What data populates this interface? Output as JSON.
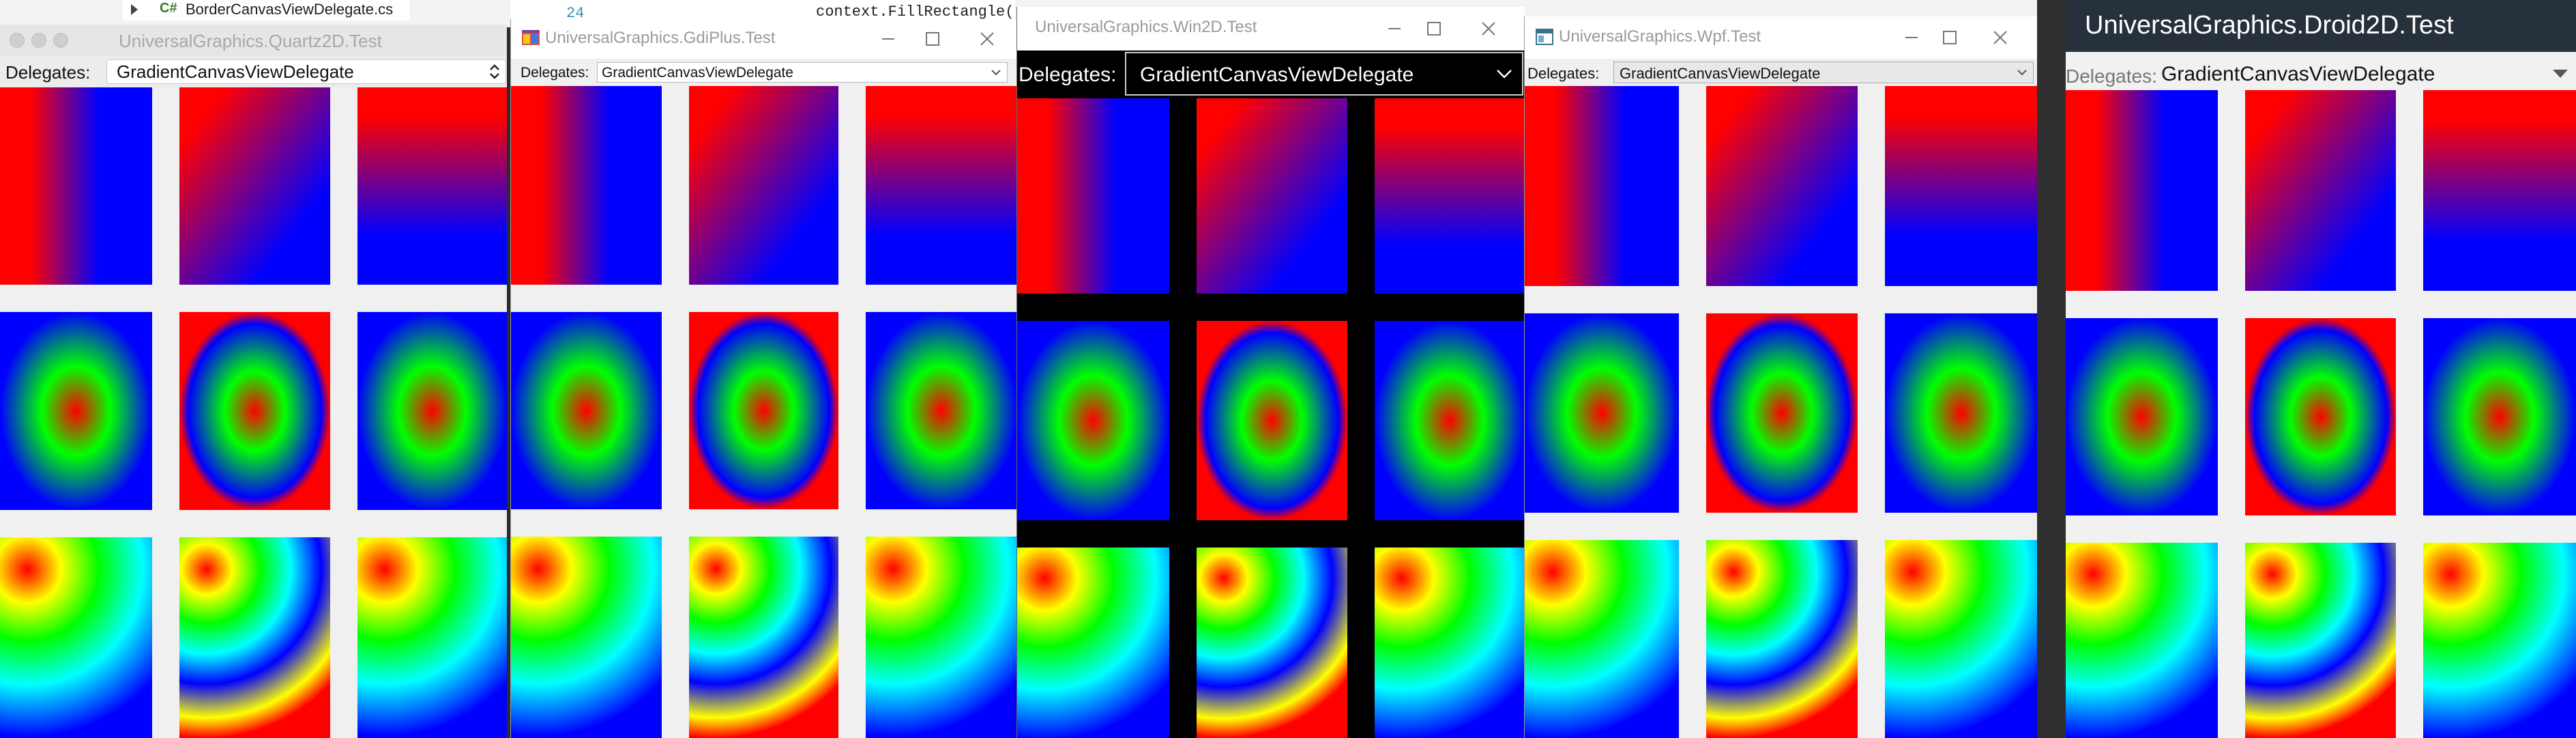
{
  "colors": {
    "red": "#ff0000",
    "green": "#00ff00",
    "blue": "#0000ff",
    "yellow": "#ffff00",
    "cyan": "#00ffff",
    "gap_light": "#f0f0f0",
    "gap_dark": "#000000",
    "android_bar": "#27313b"
  },
  "background": {
    "solution_item": "BorderCanvasViewDelegate.cs",
    "file_icon": "csharp-file-icon",
    "line_number": "24",
    "code_fragment": "context.FillRectangle("
  },
  "windows": {
    "quartz": {
      "title": "UniversalGraphics.Quartz2D.Test",
      "delegates_label": "Delegates:",
      "delegate_value": "GradientCanvasViewDelegate",
      "controls": [
        "close-icon",
        "minimize-icon",
        "zoom-icon"
      ]
    },
    "gdiplus": {
      "title": "UniversalGraphics.GdiPlus.Test",
      "delegates_label": "Delegates:",
      "delegate_value": "GradientCanvasViewDelegate",
      "app_icon": "winforms-app-icon"
    },
    "win2d": {
      "title": "UniversalGraphics.Win2D.Test",
      "delegates_label": "Delegates:",
      "delegate_value": "GradientCanvasViewDelegate"
    },
    "wpf": {
      "title": "UniversalGraphics.Wpf.Test",
      "delegates_label": "Delegates:",
      "delegate_value": "GradientCanvasViewDelegate",
      "app_icon": "wpf-app-icon"
    },
    "droid": {
      "title": "UniversalGraphics.Droid2D.Test",
      "delegates_label": "Delegates:",
      "delegate_value": "GradientCanvasViewDelegate"
    }
  },
  "gradients": [
    {
      "row": 1,
      "col": 1,
      "type": "linear",
      "direction": "horizontal",
      "stops": [
        "red",
        "blue"
      ]
    },
    {
      "row": 1,
      "col": 2,
      "type": "linear",
      "direction": "diagonal",
      "stops": [
        "red",
        "blue"
      ]
    },
    {
      "row": 1,
      "col": 3,
      "type": "linear",
      "direction": "vertical",
      "stops": [
        "red",
        "blue"
      ]
    },
    {
      "row": 2,
      "col": 1,
      "type": "radial",
      "center": "center",
      "stops": [
        "red",
        "green",
        "blue"
      ]
    },
    {
      "row": 2,
      "col": 2,
      "type": "radial",
      "center": "center",
      "stops": [
        "red",
        "green",
        "blue",
        "red"
      ]
    },
    {
      "row": 2,
      "col": 3,
      "type": "radial",
      "center": "center",
      "stops": [
        "red",
        "green",
        "blue"
      ]
    },
    {
      "row": 3,
      "col": 1,
      "type": "radial",
      "center": "top-left",
      "stops": [
        "red",
        "yellow",
        "green",
        "cyan",
        "blue"
      ]
    },
    {
      "row": 3,
      "col": 2,
      "type": "radial",
      "center": "top-left",
      "stops": [
        "red",
        "yellow",
        "green",
        "cyan",
        "blue",
        "yellow",
        "red"
      ]
    },
    {
      "row": 3,
      "col": 3,
      "type": "radial",
      "center": "top-left",
      "stops": [
        "red",
        "yellow",
        "green",
        "cyan",
        "blue"
      ]
    }
  ]
}
